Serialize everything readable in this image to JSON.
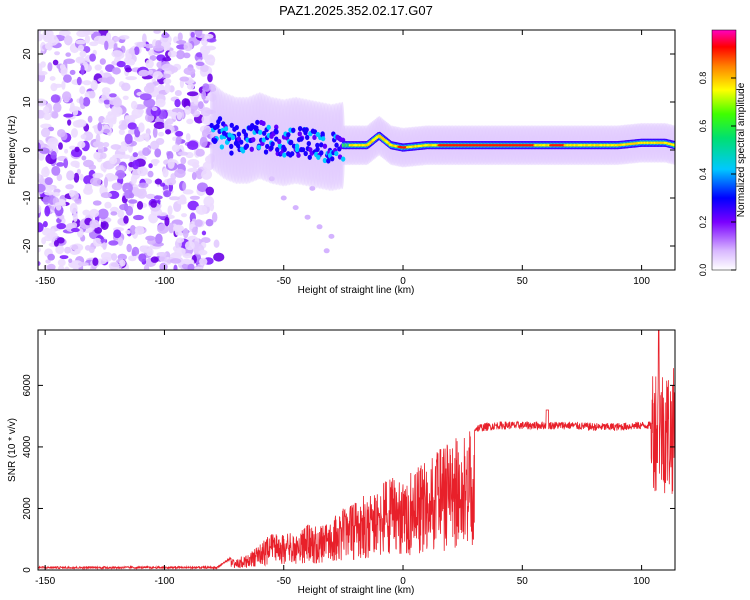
{
  "title": "PAZ1.2025.352.02.17.G07",
  "chart_data": [
    {
      "type": "heatmap",
      "xlabel": "Height of straight line (km)",
      "ylabel": "Frequency (Hz)",
      "xlim": [
        -153,
        114
      ],
      "ylim": [
        -25,
        25
      ],
      "xticks": [
        "-150",
        "-100",
        "-50",
        "0",
        "50",
        "100"
      ],
      "yticks": [
        "-20",
        "-10",
        "0",
        "10",
        "20"
      ],
      "noise_region_x": [
        -153,
        -80
      ],
      "signal_line": [
        [
          -80,
          5
        ],
        [
          -75,
          3
        ],
        [
          -70,
          2
        ],
        [
          -65,
          2
        ],
        [
          -60,
          3
        ],
        [
          -55,
          2
        ],
        [
          -50,
          1.5
        ],
        [
          -45,
          2
        ],
        [
          -40,
          1.5
        ],
        [
          -35,
          1
        ],
        [
          -30,
          0.5
        ],
        [
          -25,
          1
        ],
        [
          -20,
          1
        ],
        [
          -15,
          1
        ],
        [
          -10,
          3
        ],
        [
          -5,
          1
        ],
        [
          0,
          0.5
        ],
        [
          10,
          1
        ],
        [
          20,
          1
        ],
        [
          30,
          1
        ],
        [
          40,
          1
        ],
        [
          50,
          1
        ],
        [
          60,
          1
        ],
        [
          70,
          1
        ],
        [
          80,
          1
        ],
        [
          90,
          1
        ],
        [
          100,
          1.5
        ],
        [
          110,
          1.5
        ],
        [
          114,
          1
        ]
      ],
      "colorbar": {
        "label": "Normalized spectral amplitude",
        "ticks": [
          "0.0",
          "0.2",
          "0.4",
          "0.6",
          "0.8"
        ],
        "range": [
          0,
          1
        ]
      }
    },
    {
      "type": "line",
      "xlabel": "Height of straight line (km)",
      "ylabel": "SNR (10 * v/v)",
      "xlim": [
        -153,
        114
      ],
      "ylim": [
        0,
        7800
      ],
      "xticks": [
        "-150",
        "-100",
        "-50",
        "0",
        "50",
        "100"
      ],
      "yticks": [
        "0",
        "2000",
        "4000",
        "6000"
      ],
      "series": [
        {
          "name": "SNR",
          "color": "#e8202a",
          "envelope": [
            [
              -153,
              80
            ],
            [
              -120,
              80
            ],
            [
              -90,
              80
            ],
            [
              -78,
              80
            ],
            [
              -72,
              400
            ],
            [
              -65,
              500
            ],
            [
              -55,
              1200
            ],
            [
              -45,
              1200
            ],
            [
              -40,
              1500
            ],
            [
              -35,
              1400
            ],
            [
              -30,
              1700
            ],
            [
              -25,
              2000
            ],
            [
              -20,
              2200
            ],
            [
              -15,
              2500
            ],
            [
              -10,
              2800
            ],
            [
              -5,
              3000
            ],
            [
              0,
              3000
            ],
            [
              5,
              3300
            ],
            [
              10,
              3600
            ],
            [
              15,
              3900
            ],
            [
              20,
              4200
            ],
            [
              25,
              4500
            ],
            [
              30,
              4600
            ],
            [
              40,
              4700
            ],
            [
              50,
              4700
            ],
            [
              60,
              4700
            ],
            [
              70,
              4700
            ],
            [
              80,
              4650
            ],
            [
              90,
              4650
            ],
            [
              100,
              4700
            ],
            [
              104,
              4700
            ],
            [
              108,
              4600
            ],
            [
              112,
              4500
            ],
            [
              114,
              4500
            ]
          ]
        }
      ]
    }
  ]
}
